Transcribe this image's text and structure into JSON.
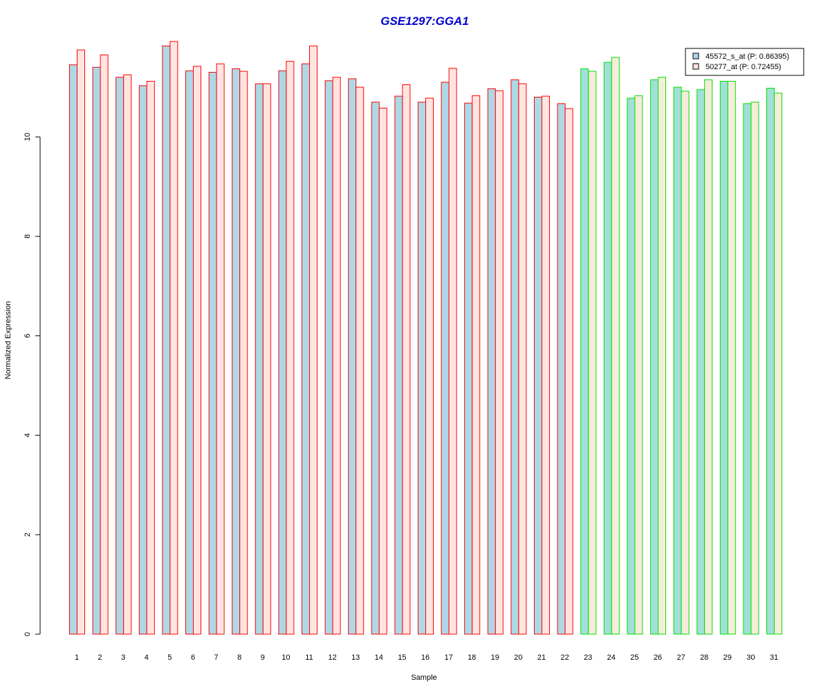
{
  "chart_data": {
    "type": "bar",
    "title": "GSE1297:GGA1",
    "xlabel": "Sample",
    "ylabel": "Normalized Expression",
    "ylim": [
      0,
      12
    ],
    "yticks": [
      0,
      2,
      4,
      6,
      8,
      10
    ],
    "grid": false,
    "legend_position": "top-right",
    "categories": [
      "1",
      "2",
      "3",
      "4",
      "5",
      "6",
      "7",
      "8",
      "9",
      "10",
      "11",
      "12",
      "13",
      "14",
      "15",
      "16",
      "17",
      "18",
      "19",
      "20",
      "21",
      "22",
      "23",
      "24",
      "25",
      "26",
      "27",
      "28",
      "29",
      "30",
      "31"
    ],
    "series": [
      {
        "name": "45572_s_at (P: 0.86395)",
        "values": [
          11.45,
          11.4,
          11.2,
          11.03,
          11.83,
          11.33,
          11.3,
          11.37,
          11.07,
          11.33,
          11.47,
          11.13,
          11.17,
          10.7,
          10.82,
          10.7,
          11.1,
          10.68,
          10.97,
          11.15,
          10.8,
          10.67,
          11.37,
          11.5,
          10.78,
          11.15,
          11.0,
          10.95,
          11.12,
          10.67,
          10.98
        ],
        "fill": "#add8e6"
      },
      {
        "name": "50277_at (P: 0.72455)",
        "values": [
          11.75,
          11.65,
          11.25,
          11.12,
          11.92,
          11.42,
          11.47,
          11.32,
          11.07,
          11.52,
          11.83,
          11.2,
          11.0,
          10.58,
          11.05,
          10.78,
          11.38,
          10.83,
          10.93,
          11.07,
          10.82,
          10.57,
          11.32,
          11.6,
          10.83,
          11.2,
          10.92,
          11.15,
          11.12,
          10.7,
          10.88
        ],
        "fill": "#ffe4e1"
      }
    ],
    "group_fill_series1": "#a0e0d6",
    "group_fill_series2": "#f5ecda",
    "groups": [
      {
        "from": "1",
        "to": "22",
        "border": "#ff0000"
      },
      {
        "from": "23",
        "to": "31",
        "border": "#00e000"
      }
    ],
    "colors": {
      "title": "#0000cd",
      "axis": "#000000"
    }
  }
}
